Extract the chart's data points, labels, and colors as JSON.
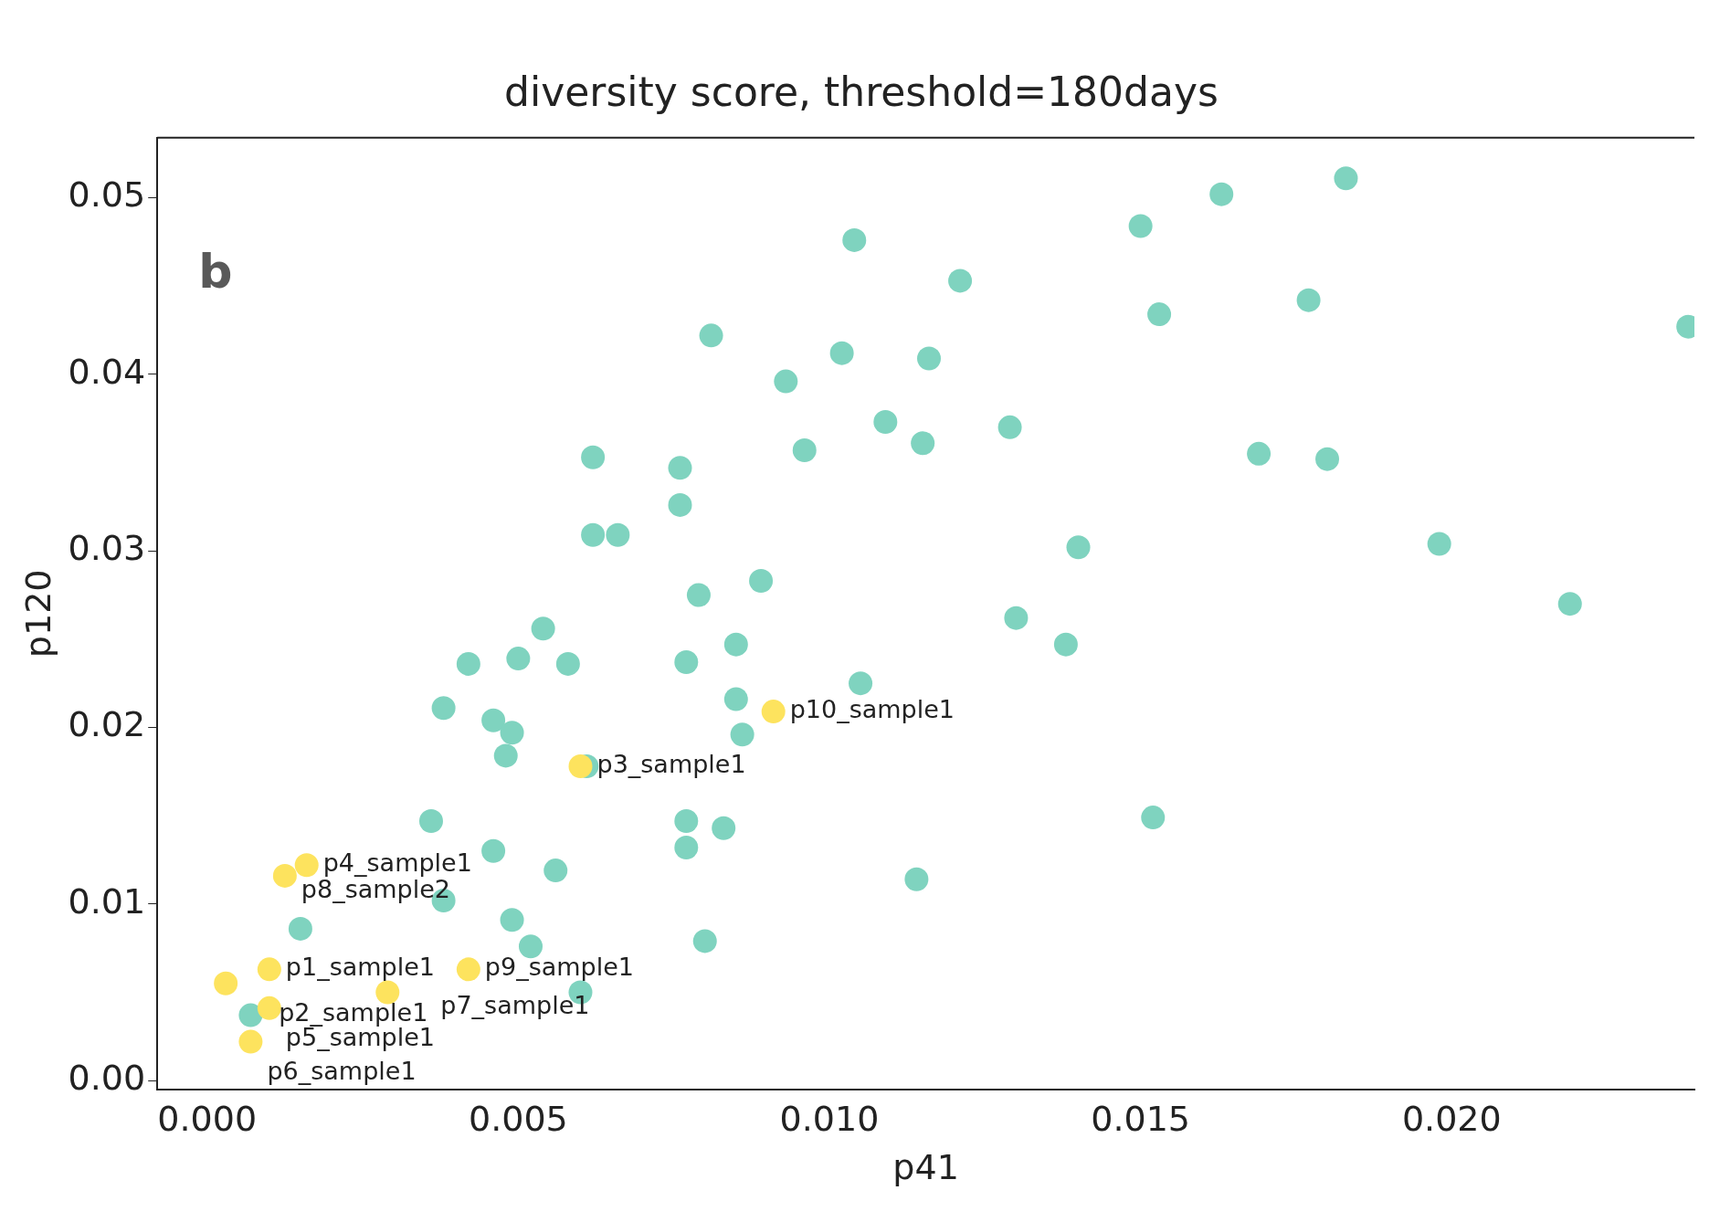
{
  "chart_data": {
    "type": "scatter",
    "title": "diversity score, threshold=180days",
    "xlabel": "p41",
    "ylabel": "p120",
    "xlim": [
      -0.0008,
      0.0239
    ],
    "xticks": [
      {
        "value": 0,
        "label": "0.000"
      },
      {
        "value": 0.005,
        "label": "0.005"
      },
      {
        "value": 0.01,
        "label": "0.010"
      },
      {
        "value": 0.015,
        "label": "0.015"
      },
      {
        "value": 0.02,
        "label": "0.020"
      }
    ],
    "ylim": [
      -0.0005,
      0.0534
    ],
    "yticks": [
      {
        "value": 0,
        "label": "0.00"
      },
      {
        "value": 0.01,
        "label": "0.01"
      },
      {
        "value": 0.02,
        "label": "0.02"
      },
      {
        "value": 0.03,
        "label": "0.03"
      },
      {
        "value": 0.04,
        "label": "0.04"
      },
      {
        "value": 0.05,
        "label": "0.05"
      }
    ],
    "grid": false,
    "legend": false,
    "marker": "circle",
    "series": [
      {
        "color": "#7fd3bf",
        "x": [
          0.0183,
          0.0163,
          0.015,
          0.0104,
          0.0121,
          0.0177,
          0.0153,
          0.0081,
          0.0102,
          0.0116,
          0.0093,
          0.0109,
          0.0129,
          0.0115,
          0.0096,
          0.0169,
          0.018,
          0.0062,
          0.0076,
          0.0076,
          0.0062,
          0.0066,
          0.014,
          0.0198,
          0.0089,
          0.0079,
          0.0219,
          0.013,
          0.0054,
          0.0085,
          0.0138,
          0.0042,
          0.005,
          0.0058,
          0.0077,
          0.0105,
          0.0038,
          0.0085,
          0.0046,
          0.0049,
          0.0086,
          0.0048,
          0.0061,
          0.0238,
          0.0036,
          0.0152,
          0.0077,
          0.0083,
          0.0077,
          0.0046,
          0.0114,
          0.0056,
          0.0038,
          0.0015,
          0.0049,
          0.008,
          0.0052,
          0.0007,
          0.006
        ],
        "values": [
          0.0511,
          0.0502,
          0.0484,
          0.0476,
          0.0453,
          0.0442,
          0.0434,
          0.0422,
          0.0412,
          0.0409,
          0.0396,
          0.0373,
          0.037,
          0.0361,
          0.0357,
          0.0355,
          0.0352,
          0.0353,
          0.0347,
          0.0326,
          0.0309,
          0.0309,
          0.0302,
          0.0304,
          0.0283,
          0.0275,
          0.027,
          0.0262,
          0.0256,
          0.0247,
          0.0247,
          0.0236,
          0.0239,
          0.0236,
          0.0237,
          0.0225,
          0.0211,
          0.0216,
          0.0204,
          0.0197,
          0.0196,
          0.0184,
          0.0178,
          0.0427,
          0.0147,
          0.0149,
          0.0147,
          0.0143,
          0.0132,
          0.013,
          0.0114,
          0.0119,
          0.0102,
          0.0086,
          0.0091,
          0.0079,
          0.0076,
          0.0037,
          0.005
        ]
      },
      {
        "color": "#fde35e",
        "x": [
          0.0091,
          0.006,
          0.0016,
          0.00125,
          0.001,
          0.0003,
          0.001,
          0.0007,
          0.0042,
          0.0029
        ],
        "values": [
          0.0209,
          0.0178,
          0.0122,
          0.0116,
          0.0063,
          0.0055,
          0.0041,
          0.0022,
          0.0063,
          0.005
        ]
      }
    ],
    "annotations": [
      "b",
      {
        "text": "p10_sample1",
        "x": 0.0091,
        "y": 0.0209
      },
      {
        "text": "p3_sample1",
        "x": 0.006,
        "y": 0.0178
      },
      {
        "text": "p4_sample1",
        "x": 0.0016,
        "y": 0.0122
      },
      {
        "text": "p8_sample2",
        "x": 0.00125,
        "y": 0.0116
      },
      {
        "text": "p1_sample1",
        "x": 0.001,
        "y": 0.0063
      },
      {
        "text": "p2_sample1",
        "x": 0.0003,
        "y": 0.0055
      },
      {
        "text": "p5_sample1",
        "x": 0.001,
        "y": 0.0041
      },
      {
        "text": "p6_sample1",
        "x": 0.0007,
        "y": 0.0022
      },
      {
        "text": "p9_sample1",
        "x": 0.0042,
        "y": 0.0063
      },
      {
        "text": "p7_sample1",
        "x": 0.0029,
        "y": 0.005
      }
    ]
  }
}
